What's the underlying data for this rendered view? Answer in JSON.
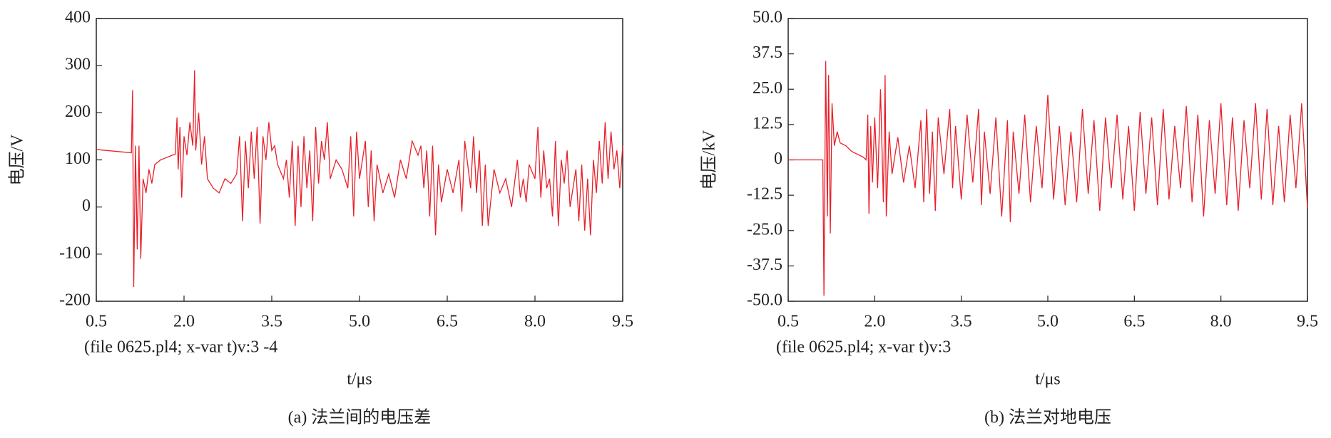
{
  "chart_data": [
    {
      "type": "line",
      "caption": "(a) 法兰间的电压差",
      "ylabel": "电压/V",
      "xlabel": "t/μs",
      "note": "(file 0625.pl4; x-var t)v:3  -4",
      "xlim": [
        0.5,
        9.5
      ],
      "ylim": [
        -200,
        400
      ],
      "xticks": [
        0.5,
        {
          "value": 2,
          "label": "2.0"
        },
        3.5,
        {
          "value": 5,
          "label": "5.0"
        },
        6.5,
        {
          "value": 8,
          "label": "8.0"
        },
        9.5
      ],
      "yticks": [
        -200,
        -100,
        0,
        100,
        200,
        300,
        400
      ],
      "series": [
        {
          "color": "#e8202a",
          "x": [
            0.5,
            1.1,
            1.12,
            1.14,
            1.17,
            1.2,
            1.23,
            1.26,
            1.3,
            1.35,
            1.4,
            1.45,
            1.5,
            1.6,
            1.7,
            1.8,
            1.85,
            1.88,
            1.9,
            1.93,
            1.96,
            2.0,
            2.05,
            2.1,
            2.15,
            2.18,
            2.2,
            2.25,
            2.3,
            2.35,
            2.4,
            2.5,
            2.6,
            2.7,
            2.8,
            2.9,
            2.95,
            3.0,
            3.05,
            3.1,
            3.15,
            3.2,
            3.25,
            3.3,
            3.35,
            3.4,
            3.45,
            3.5,
            3.55,
            3.6,
            3.7,
            3.75,
            3.8,
            3.85,
            3.9,
            3.95,
            4.0,
            4.05,
            4.1,
            4.15,
            4.2,
            4.25,
            4.3,
            4.35,
            4.4,
            4.45,
            4.5,
            4.6,
            4.7,
            4.8,
            4.85,
            4.9,
            4.95,
            5.0,
            5.1,
            5.15,
            5.2,
            5.25,
            5.3,
            5.4,
            5.5,
            5.6,
            5.7,
            5.8,
            5.9,
            6.0,
            6.05,
            6.1,
            6.15,
            6.2,
            6.25,
            6.3,
            6.35,
            6.4,
            6.5,
            6.6,
            6.7,
            6.75,
            6.8,
            6.9,
            6.95,
            7.0,
            7.05,
            7.1,
            7.15,
            7.2,
            7.3,
            7.4,
            7.5,
            7.6,
            7.7,
            7.75,
            7.8,
            7.85,
            7.9,
            8.0,
            8.05,
            8.1,
            8.15,
            8.2,
            8.25,
            8.3,
            8.35,
            8.4,
            8.45,
            8.5,
            8.55,
            8.6,
            8.7,
            8.75,
            8.8,
            8.85,
            8.9,
            8.95,
            9.0,
            9.05,
            9.1,
            9.15,
            9.2,
            9.25,
            9.3,
            9.35,
            9.4,
            9.45,
            9.5
          ],
          "values": [
            122,
            115,
            248,
            -170,
            130,
            -90,
            130,
            -110,
            60,
            30,
            80,
            50,
            90,
            100,
            105,
            110,
            112,
            190,
            80,
            170,
            20,
            150,
            110,
            180,
            130,
            290,
            120,
            200,
            90,
            150,
            60,
            40,
            30,
            60,
            50,
            70,
            150,
            -30,
            140,
            40,
            160,
            60,
            170,
            -35,
            150,
            100,
            180,
            120,
            130,
            90,
            60,
            100,
            20,
            140,
            -40,
            130,
            0,
            150,
            40,
            120,
            -30,
            170,
            50,
            140,
            100,
            180,
            60,
            100,
            80,
            40,
            150,
            -20,
            160,
            60,
            140,
            0,
            120,
            -30,
            90,
            30,
            70,
            20,
            100,
            60,
            140,
            110,
            130,
            40,
            120,
            -20,
            130,
            -60,
            90,
            10,
            80,
            30,
            100,
            -10,
            140,
            40,
            150,
            30,
            120,
            -40,
            90,
            -40,
            80,
            30,
            60,
            0,
            100,
            20,
            60,
            10,
            90,
            60,
            170,
            20,
            120,
            40,
            60,
            -20,
            140,
            -40,
            100,
            50,
            120,
            0,
            80,
            -30,
            90,
            -50,
            60,
            -60,
            100,
            30,
            140,
            50,
            180,
            60,
            160,
            80,
            120,
            40,
            130
          ]
        }
      ]
    },
    {
      "type": "line",
      "caption": "(b) 法兰对地电压",
      "ylabel": "电压/kV",
      "xlabel": "t/μs",
      "note": "(file 0625.pl4; x-var t)v:3",
      "xlim": [
        0.5,
        9.5
      ],
      "ylim": [
        -50,
        50
      ],
      "xticks": [
        0.5,
        {
          "value": 2,
          "label": "2.0"
        },
        3.5,
        {
          "value": 5,
          "label": "5.0"
        },
        6.5,
        {
          "value": 8,
          "label": "8.0"
        },
        9.5
      ],
      "yticks": [
        {
          "value": -50,
          "label": "-50.0"
        },
        -37.5,
        {
          "value": -25,
          "label": "-25.0"
        },
        -12.5,
        0,
        12.5,
        {
          "value": 25,
          "label": "25.0"
        },
        37.5,
        {
          "value": 50,
          "label": "50.0"
        }
      ],
      "series": [
        {
          "color": "#e8202a",
          "x": [
            0.5,
            1.1,
            1.12,
            1.15,
            1.18,
            1.2,
            1.23,
            1.26,
            1.3,
            1.35,
            1.4,
            1.5,
            1.6,
            1.7,
            1.8,
            1.85,
            1.88,
            1.9,
            1.93,
            1.96,
            2.0,
            2.05,
            2.1,
            2.15,
            2.18,
            2.2,
            2.25,
            2.3,
            2.4,
            2.5,
            2.6,
            2.7,
            2.8,
            2.85,
            2.9,
            2.95,
            3.0,
            3.05,
            3.1,
            3.2,
            3.3,
            3.35,
            3.4,
            3.5,
            3.6,
            3.7,
            3.8,
            3.85,
            3.9,
            4.0,
            4.1,
            4.2,
            4.3,
            4.35,
            4.4,
            4.5,
            4.6,
            4.7,
            4.8,
            4.9,
            5.0,
            5.1,
            5.2,
            5.3,
            5.4,
            5.5,
            5.6,
            5.7,
            5.8,
            5.9,
            6.0,
            6.1,
            6.2,
            6.3,
            6.4,
            6.5,
            6.6,
            6.7,
            6.8,
            6.9,
            7.0,
            7.1,
            7.2,
            7.3,
            7.4,
            7.5,
            7.6,
            7.7,
            7.8,
            7.9,
            8.0,
            8.1,
            8.2,
            8.3,
            8.4,
            8.5,
            8.6,
            8.7,
            8.8,
            8.9,
            9.0,
            9.1,
            9.2,
            9.3,
            9.4,
            9.5
          ],
          "values": [
            0,
            0,
            -48,
            35,
            -20,
            30,
            -26,
            20,
            5,
            10,
            6,
            5,
            3,
            2,
            1,
            0,
            16,
            -19,
            12,
            -8,
            15,
            -10,
            25,
            -15,
            30,
            -20,
            10,
            -5,
            8,
            -8,
            5,
            -10,
            14,
            -15,
            18,
            -12,
            10,
            -18,
            15,
            -5,
            18,
            -10,
            12,
            -14,
            16,
            -8,
            18,
            -16,
            10,
            -12,
            15,
            -20,
            14,
            -22,
            10,
            -12,
            16,
            -15,
            12,
            -10,
            23,
            -14,
            12,
            -16,
            10,
            -15,
            18,
            -12,
            14,
            -18,
            15,
            -10,
            16,
            -14,
            12,
            -18,
            17,
            -12,
            15,
            -16,
            18,
            -14,
            12,
            -10,
            19,
            -15,
            16,
            -20,
            14,
            -12,
            20,
            -16,
            15,
            -18,
            14,
            -10,
            20,
            -14,
            18,
            -16,
            12,
            -15,
            16,
            -10,
            20,
            -17
          ]
        }
      ]
    }
  ]
}
